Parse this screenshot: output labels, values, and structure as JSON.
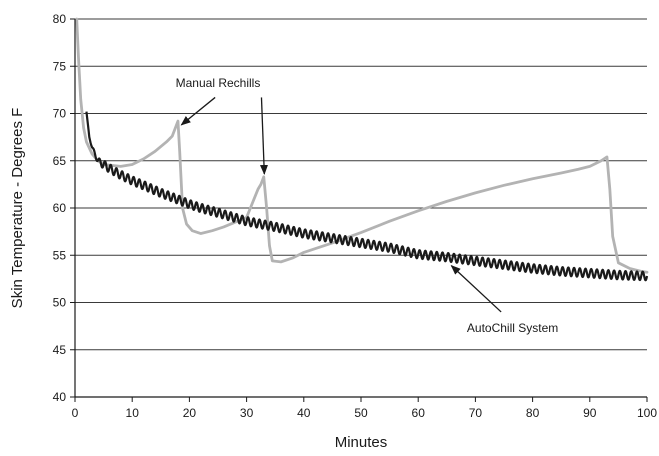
{
  "chart_data": {
    "type": "line",
    "title": "",
    "xlabel": "Minutes",
    "ylabel": "Skin Temperature - Degrees F",
    "xlim": [
      0,
      100
    ],
    "ylim": [
      40,
      80
    ],
    "xticks": [
      "0",
      "10",
      "20",
      "30",
      "40",
      "50",
      "60",
      "70",
      "80",
      "90",
      "100"
    ],
    "yticks": [
      "40",
      "45",
      "50",
      "55",
      "60",
      "65",
      "70",
      "75",
      "80"
    ],
    "grid": "horizontal",
    "legend": "none",
    "colors": {
      "autochill": "#1a1a1a",
      "manual": "#b3b3b3"
    },
    "annotations": [
      {
        "text": "Manual Rechills"
      },
      {
        "text": "AutoChill System"
      }
    ],
    "series": [
      {
        "name": "AutoChill System",
        "style": "oscillating",
        "oscillation_amplitude": 0.45,
        "oscillation_period": 1.0,
        "x": [
          2,
          2.5,
          3,
          4,
          5,
          6,
          8,
          10,
          12,
          15,
          18,
          20,
          22,
          25,
          30,
          35,
          40,
          45,
          50,
          55,
          60,
          65,
          70,
          75,
          80,
          85,
          90,
          95,
          100
        ],
        "y": [
          70.2,
          67.5,
          66.4,
          65.0,
          64.6,
          64.2,
          63.5,
          62.9,
          62.4,
          61.6,
          60.9,
          60.4,
          60.0,
          59.5,
          58.6,
          58.0,
          57.3,
          56.8,
          56.3,
          55.8,
          55.1,
          54.8,
          54.4,
          54.0,
          53.6,
          53.3,
          53.1,
          52.9,
          52.8
        ]
      },
      {
        "name": "Manual Rechills",
        "style": "smooth",
        "x": [
          0.3,
          0.6,
          1.0,
          1.5,
          2.0,
          3.0,
          4.0,
          5.0,
          8.0,
          10,
          12,
          14,
          15,
          16,
          17,
          17.5,
          18,
          18.3,
          18.8,
          19.5,
          20.5,
          22,
          24,
          26,
          28,
          30,
          31,
          32,
          32.5,
          33,
          33.5,
          34,
          34.5,
          36,
          38,
          40,
          45,
          50,
          55,
          60,
          65,
          70,
          75,
          80,
          85,
          88,
          90,
          92,
          93,
          93.5,
          94,
          95,
          97,
          99,
          100
        ],
        "y": [
          80,
          76,
          71.5,
          68.5,
          67.0,
          65.7,
          65.0,
          64.6,
          64.4,
          64.6,
          65.2,
          66.0,
          66.5,
          67.0,
          67.6,
          68.4,
          69.2,
          66.0,
          60.0,
          58.3,
          57.6,
          57.3,
          57.6,
          58.0,
          58.5,
          59.0,
          60.5,
          62.0,
          62.5,
          63.3,
          60.0,
          56.0,
          54.4,
          54.3,
          54.7,
          55.3,
          56.3,
          57.4,
          58.6,
          59.7,
          60.7,
          61.6,
          62.4,
          63.1,
          63.7,
          64.1,
          64.4,
          65.0,
          65.4,
          62.0,
          57.0,
          54.2,
          53.6,
          53.3,
          53.2
        ]
      }
    ]
  }
}
